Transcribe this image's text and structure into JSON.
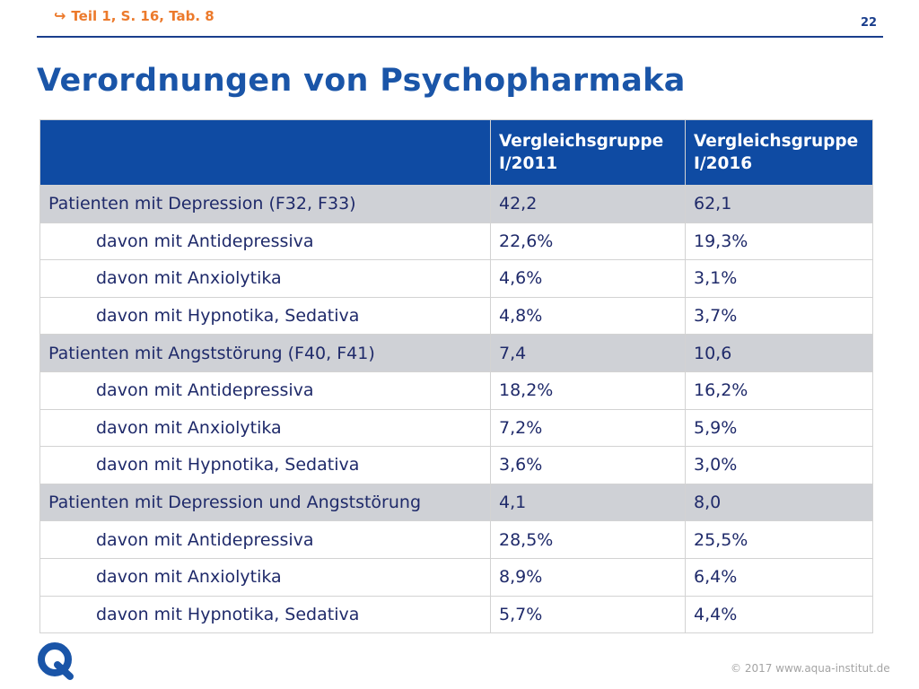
{
  "header": {
    "reference": "Teil 1, S. 16, Tab. 8",
    "reference_icon": "arrow-right-icon",
    "page_number": "22",
    "accent_color": "#ec7a2c",
    "brand_color": "#1a3e8c"
  },
  "title": "Verordnungen von Psychopharmaka",
  "table": {
    "headers": [
      "",
      "Vergleichsgruppe I/2011",
      "Vergleichsgruppe I/2016"
    ],
    "rows": [
      {
        "type": "group",
        "label": "Patienten mit Depression (F32, F33)",
        "v2011": "42,2",
        "v2016": "62,1"
      },
      {
        "type": "sub",
        "label": "davon mit Antidepressiva",
        "v2011": "22,6%",
        "v2016": "19,3%"
      },
      {
        "type": "sub",
        "label": "davon mit Anxiolytika",
        "v2011": "4,6%",
        "v2016": "3,1%"
      },
      {
        "type": "sub",
        "label": "davon mit Hypnotika, Sedativa",
        "v2011": "4,8%",
        "v2016": "3,7%"
      },
      {
        "type": "group",
        "label": "Patienten mit Angststörung (F40, F41)",
        "v2011": "7,4",
        "v2016": "10,6"
      },
      {
        "type": "sub",
        "label": "davon mit Antidepressiva",
        "v2011": "18,2%",
        "v2016": "16,2%"
      },
      {
        "type": "sub",
        "label": "davon mit Anxiolytika",
        "v2011": "7,2%",
        "v2016": "5,9%"
      },
      {
        "type": "sub",
        "label": "davon mit Hypnotika, Sedativa",
        "v2011": "3,6%",
        "v2016": "3,0%"
      },
      {
        "type": "group",
        "label": "Patienten mit Depression und Angststörung",
        "v2011": "4,1",
        "v2016": "8,0"
      },
      {
        "type": "sub",
        "label": "davon mit Antidepressiva",
        "v2011": "28,5%",
        "v2016": "25,5%"
      },
      {
        "type": "sub",
        "label": "davon mit Anxiolytika",
        "v2011": "8,9%",
        "v2016": "6,4%"
      },
      {
        "type": "sub",
        "label": "davon mit Hypnotika, Sedativa",
        "v2011": "5,7%",
        "v2016": "4,4%"
      }
    ]
  },
  "footer": {
    "logo_letter": "Q",
    "logo_icon": "aqua-q-logo-icon",
    "copyright": "© 2017 www.aqua-institut.de"
  }
}
